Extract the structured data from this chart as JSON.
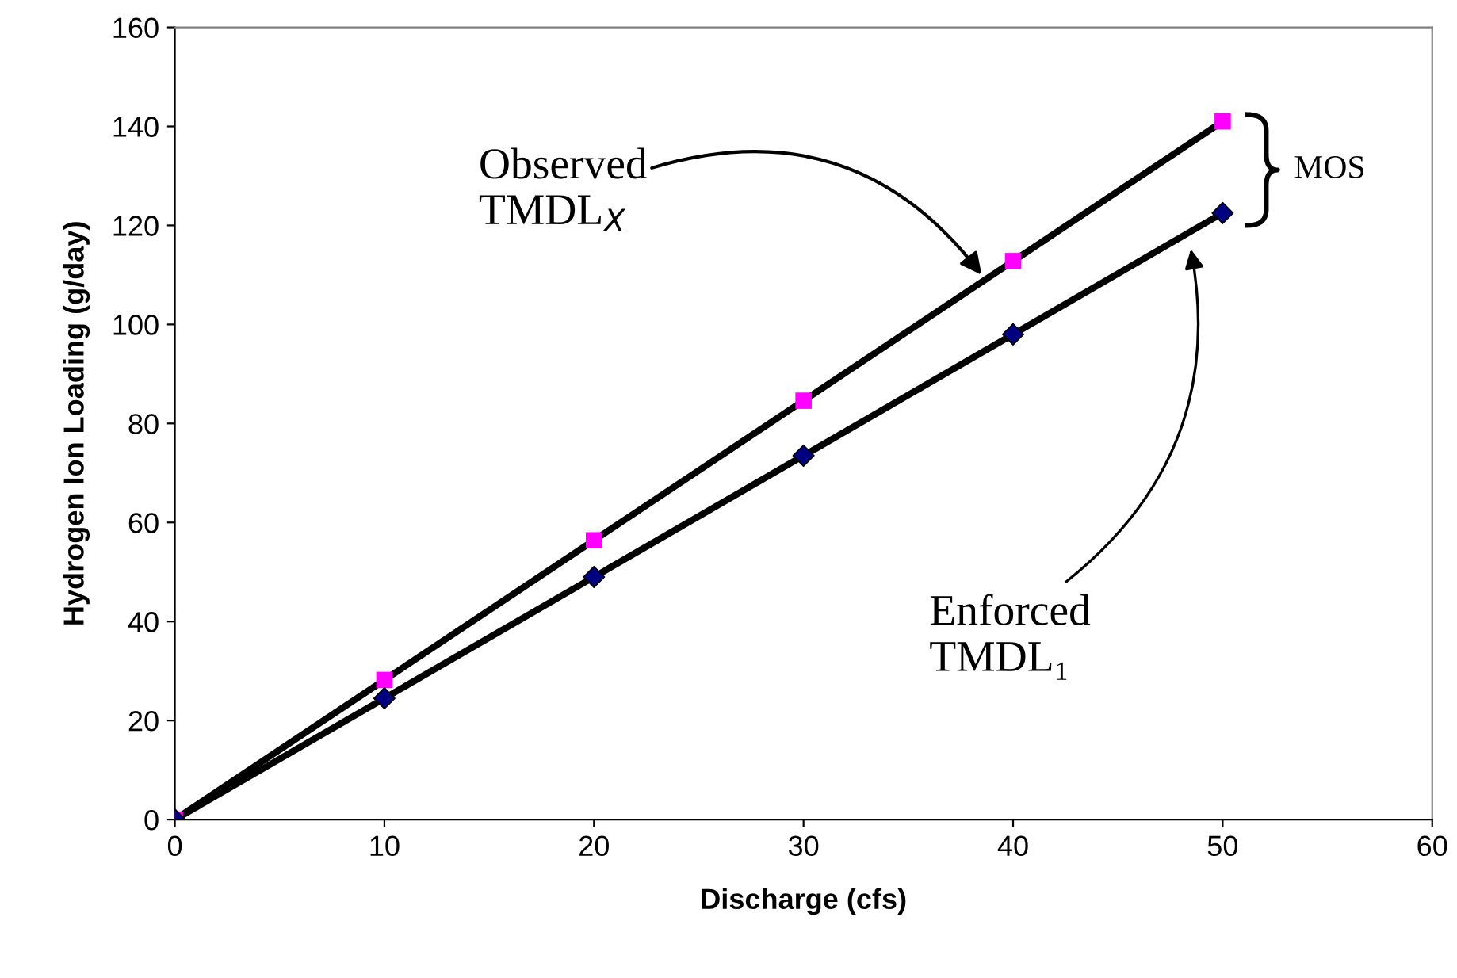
{
  "chart_data": {
    "type": "scatter",
    "xlabel": "Discharge (cfs)",
    "ylabel": "Hydrogen Ion Loading (g/day)",
    "x": [
      0,
      10,
      20,
      30,
      40,
      50
    ],
    "series": [
      {
        "type": "line",
        "values": [
          0,
          28.2,
          56.4,
          84.6,
          112.8,
          141
        ],
        "color": "#000000",
        "marker": "none",
        "line_style": "solid"
      },
      {
        "type": "line",
        "values": [
          0,
          24.5,
          49,
          73.5,
          98,
          122.5
        ],
        "color": "#000000",
        "marker": "none",
        "line_style": "solid"
      },
      {
        "values": [
          0,
          28.2,
          56.4,
          84.6,
          112.8,
          141
        ],
        "color": "#ff00ff",
        "marker": "square"
      },
      {
        "values": [
          0,
          24.5,
          49,
          73.5,
          98,
          122.5
        ],
        "color": "#000080",
        "marker": "diamond"
      }
    ],
    "annotations": [
      {
        "text": "Observed\nTMDL$_{X}$",
        "x": 38.5,
        "y": 110
      },
      "Enforced\nTMDL₁",
      "MOS"
    ],
    "xlim": [
      0,
      60
    ],
    "xticks": [
      0,
      10,
      20,
      30,
      40,
      50,
      60
    ],
    "ylim": [
      0,
      160
    ],
    "yticks": [
      0,
      20,
      40,
      60,
      80,
      100,
      120,
      140,
      160
    ],
    "grid": false,
    "legend": false
  }
}
